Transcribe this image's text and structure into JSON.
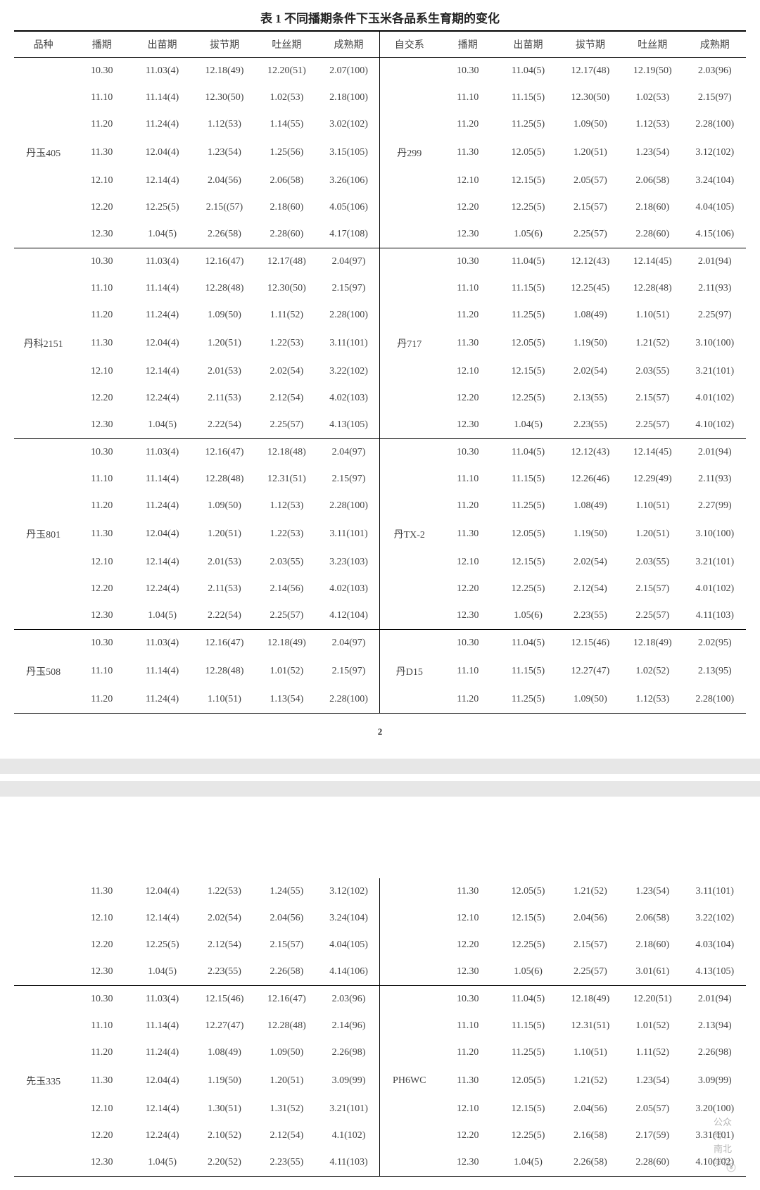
{
  "title": "表 1 不同播期条件下玉米各品系生育期的变化",
  "page_number": "2",
  "header_left": [
    "品种",
    "播期",
    "出苗期",
    "拔节期",
    "吐丝期",
    "成熟期"
  ],
  "header_right": [
    "自交系",
    "播期",
    "出苗期",
    "拔节期",
    "吐丝期",
    "成熟期"
  ],
  "groups": [
    {
      "left_name": "丹玉405",
      "right_name": "丹299",
      "rows": [
        {
          "l": [
            "10.30",
            "11.03(4)",
            "12.18(49)",
            "12.20(51)",
            "2.07(100)"
          ],
          "r": [
            "10.30",
            "11.04(5)",
            "12.17(48)",
            "12.19(50)",
            "2.03(96)"
          ]
        },
        {
          "l": [
            "11.10",
            "11.14(4)",
            "12.30(50)",
            "1.02(53)",
            "2.18(100)"
          ],
          "r": [
            "11.10",
            "11.15(5)",
            "12.30(50)",
            "1.02(53)",
            "2.15(97)"
          ]
        },
        {
          "l": [
            "11.20",
            "11.24(4)",
            "1.12(53)",
            "1.14(55)",
            "3.02(102)"
          ],
          "r": [
            "11.20",
            "11.25(5)",
            "1.09(50)",
            "1.12(53)",
            "2.28(100)"
          ]
        },
        {
          "l": [
            "11.30",
            "12.04(4)",
            "1.23(54)",
            "1.25(56)",
            "3.15(105)"
          ],
          "r": [
            "11.30",
            "12.05(5)",
            "1.20(51)",
            "1.23(54)",
            "3.12(102)"
          ]
        },
        {
          "l": [
            "12.10",
            "12.14(4)",
            "2.04(56)",
            "2.06(58)",
            "3.26(106)"
          ],
          "r": [
            "12.10",
            "12.15(5)",
            "2.05(57)",
            "2.06(58)",
            "3.24(104)"
          ]
        },
        {
          "l": [
            "12.20",
            "12.25(5)",
            "2.15((57)",
            "2.18(60)",
            "4.05(106)"
          ],
          "r": [
            "12.20",
            "12.25(5)",
            "2.15(57)",
            "2.18(60)",
            "4.04(105)"
          ]
        },
        {
          "l": [
            "12.30",
            "1.04(5)",
            "2.26(58)",
            "2.28(60)",
            "4.17(108)"
          ],
          "r": [
            "12.30",
            "1.05(6)",
            "2.25(57)",
            "2.28(60)",
            "4.15(106)"
          ]
        }
      ]
    },
    {
      "left_name": "丹科2151",
      "right_name": "丹717",
      "rows": [
        {
          "l": [
            "10.30",
            "11.03(4)",
            "12.16(47)",
            "12.17(48)",
            "2.04(97)"
          ],
          "r": [
            "10.30",
            "11.04(5)",
            "12.12(43)",
            "12.14(45)",
            "2.01(94)"
          ]
        },
        {
          "l": [
            "11.10",
            "11.14(4)",
            "12.28(48)",
            "12.30(50)",
            "2.15(97)"
          ],
          "r": [
            "11.10",
            "11.15(5)",
            "12.25(45)",
            "12.28(48)",
            "2.11(93)"
          ]
        },
        {
          "l": [
            "11.20",
            "11.24(4)",
            "1.09(50)",
            "1.11(52)",
            "2.28(100)"
          ],
          "r": [
            "11.20",
            "11.25(5)",
            "1.08(49)",
            "1.10(51)",
            "2.25(97)"
          ]
        },
        {
          "l": [
            "11.30",
            "12.04(4)",
            "1.20(51)",
            "1.22(53)",
            "3.11(101)"
          ],
          "r": [
            "11.30",
            "12.05(5)",
            "1.19(50)",
            "1.21(52)",
            "3.10(100)"
          ]
        },
        {
          "l": [
            "12.10",
            "12.14(4)",
            "2.01(53)",
            "2.02(54)",
            "3.22(102)"
          ],
          "r": [
            "12.10",
            "12.15(5)",
            "2.02(54)",
            "2.03(55)",
            "3.21(101)"
          ]
        },
        {
          "l": [
            "12.20",
            "12.24(4)",
            "2.11(53)",
            "2.12(54)",
            "4.02(103)"
          ],
          "r": [
            "12.20",
            "12.25(5)",
            "2.13(55)",
            "2.15(57)",
            "4.01(102)"
          ]
        },
        {
          "l": [
            "12.30",
            "1.04(5)",
            "2.22(54)",
            "2.25(57)",
            "4.13(105)"
          ],
          "r": [
            "12.30",
            "1.04(5)",
            "2.23(55)",
            "2.25(57)",
            "4.10(102)"
          ]
        }
      ]
    },
    {
      "left_name": "丹玉801",
      "right_name": "丹TX-2",
      "rows": [
        {
          "l": [
            "10.30",
            "11.03(4)",
            "12.16(47)",
            "12.18(48)",
            "2.04(97)"
          ],
          "r": [
            "10.30",
            "11.04(5)",
            "12.12(43)",
            "12.14(45)",
            "2.01(94)"
          ]
        },
        {
          "l": [
            "11.10",
            "11.14(4)",
            "12.28(48)",
            "12.31(51)",
            "2.15(97)"
          ],
          "r": [
            "11.10",
            "11.15(5)",
            "12.26(46)",
            "12.29(49)",
            "2.11(93)"
          ]
        },
        {
          "l": [
            "11.20",
            "11.24(4)",
            "1.09(50)",
            "1.12(53)",
            "2.28(100)"
          ],
          "r": [
            "11.20",
            "11.25(5)",
            "1.08(49)",
            "1.10(51)",
            "2.27(99)"
          ]
        },
        {
          "l": [
            "11.30",
            "12.04(4)",
            "1.20(51)",
            "1.22(53)",
            "3.11(101)"
          ],
          "r": [
            "11.30",
            "12.05(5)",
            "1.19(50)",
            "1.20(51)",
            "3.10(100)"
          ]
        },
        {
          "l": [
            "12.10",
            "12.14(4)",
            "2.01(53)",
            "2.03(55)",
            "3.23(103)"
          ],
          "r": [
            "12.10",
            "12.15(5)",
            "2.02(54)",
            "2.03(55)",
            "3.21(101)"
          ]
        },
        {
          "l": [
            "12.20",
            "12.24(4)",
            "2.11(53)",
            "2.14(56)",
            "4.02(103)"
          ],
          "r": [
            "12.20",
            "12.25(5)",
            "2.12(54)",
            "2.15(57)",
            "4.01(102)"
          ]
        },
        {
          "l": [
            "12.30",
            "1.04(5)",
            "2.22(54)",
            "2.25(57)",
            "4.12(104)"
          ],
          "r": [
            "12.30",
            "1.05(6)",
            "2.23(55)",
            "2.25(57)",
            "4.11(103)"
          ]
        }
      ]
    },
    {
      "left_name": "丹玉508",
      "right_name": "丹D15",
      "rows": [
        {
          "l": [
            "10.30",
            "11.03(4)",
            "12.16(47)",
            "12.18(49)",
            "2.04(97)"
          ],
          "r": [
            "10.30",
            "11.04(5)",
            "12.15(46)",
            "12.18(49)",
            "2.02(95)"
          ]
        },
        {
          "l": [
            "11.10",
            "11.14(4)",
            "12.28(48)",
            "1.01(52)",
            "2.15(97)"
          ],
          "r": [
            "11.10",
            "11.15(5)",
            "12.27(47)",
            "1.02(52)",
            "2.13(95)"
          ]
        },
        {
          "l": [
            "11.20",
            "11.24(4)",
            "1.10(51)",
            "1.13(54)",
            "2.28(100)"
          ],
          "r": [
            "11.20",
            "11.25(5)",
            "1.09(50)",
            "1.12(53)",
            "2.28(100)"
          ]
        }
      ]
    }
  ],
  "cont_groups": [
    {
      "left_name": "",
      "right_name": "",
      "rows": [
        {
          "l": [
            "11.30",
            "12.04(4)",
            "1.22(53)",
            "1.24(55)",
            "3.12(102)"
          ],
          "r": [
            "11.30",
            "12.05(5)",
            "1.21(52)",
            "1.23(54)",
            "3.11(101)"
          ]
        },
        {
          "l": [
            "12.10",
            "12.14(4)",
            "2.02(54)",
            "2.04(56)",
            "3.24(104)"
          ],
          "r": [
            "12.10",
            "12.15(5)",
            "2.04(56)",
            "2.06(58)",
            "3.22(102)"
          ]
        },
        {
          "l": [
            "12.20",
            "12.25(5)",
            "2.12(54)",
            "2.15(57)",
            "4.04(105)"
          ],
          "r": [
            "12.20",
            "12.25(5)",
            "2.15(57)",
            "2.18(60)",
            "4.03(104)"
          ]
        },
        {
          "l": [
            "12.30",
            "1.04(5)",
            "2.23(55)",
            "2.26(58)",
            "4.14(106)"
          ],
          "r": [
            "12.30",
            "1.05(6)",
            "2.25(57)",
            "3.01(61)",
            "4.13(105)"
          ]
        }
      ]
    },
    {
      "left_name": "先玉335",
      "right_name": "PH6WC",
      "rows": [
        {
          "l": [
            "10.30",
            "11.03(4)",
            "12.15(46)",
            "12.16(47)",
            "2.03(96)"
          ],
          "r": [
            "10.30",
            "11.04(5)",
            "12.18(49)",
            "12.20(51)",
            "2.01(94)"
          ]
        },
        {
          "l": [
            "11.10",
            "11.14(4)",
            "12.27(47)",
            "12.28(48)",
            "2.14(96)"
          ],
          "r": [
            "11.10",
            "11.15(5)",
            "12.31(51)",
            "1.01(52)",
            "2.13(94)"
          ]
        },
        {
          "l": [
            "11.20",
            "11.24(4)",
            "1.08(49)",
            "1.09(50)",
            "2.26(98)"
          ],
          "r": [
            "11.20",
            "11.25(5)",
            "1.10(51)",
            "1.11(52)",
            "2.26(98)"
          ]
        },
        {
          "l": [
            "11.30",
            "12.04(4)",
            "1.19(50)",
            "1.20(51)",
            "3.09(99)"
          ],
          "r": [
            "11.30",
            "12.05(5)",
            "1.21(52)",
            "1.23(54)",
            "3.09(99)"
          ]
        },
        {
          "l": [
            "12.10",
            "12.14(4)",
            "1.30(51)",
            "1.31(52)",
            "3.21(101)"
          ],
          "r": [
            "12.10",
            "12.15(5)",
            "2.04(56)",
            "2.05(57)",
            "3.20(100)"
          ]
        },
        {
          "l": [
            "12.20",
            "12.24(4)",
            "2.10(52)",
            "2.12(54)",
            "4.1(102)"
          ],
          "r": [
            "12.20",
            "12.25(5)",
            "2.16(58)",
            "2.17(59)",
            "3.31(101)"
          ]
        },
        {
          "l": [
            "12.30",
            "1.04(5)",
            "2.20(52)",
            "2.23(55)",
            "4.11(103)"
          ],
          "r": [
            "12.30",
            "1.04(5)",
            "2.26(58)",
            "2.28(60)",
            "4.10(102)"
          ]
        }
      ]
    }
  ],
  "watermark": "公众号：南北学社"
}
